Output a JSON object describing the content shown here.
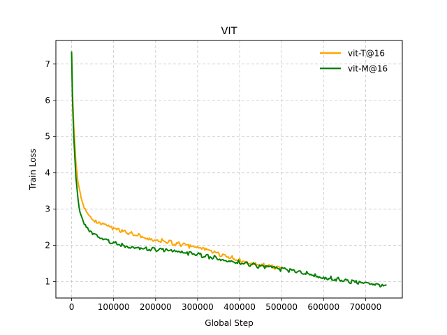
{
  "chart_data": {
    "type": "line",
    "title": "VIT",
    "xlabel": "Global Step",
    "ylabel": "Train Loss",
    "xlim": [
      -37500,
      787500
    ],
    "ylim": [
      0.55,
      7.65
    ],
    "xticks": [
      0,
      100000,
      200000,
      300000,
      400000,
      500000,
      600000,
      700000
    ],
    "xtick_labels": [
      "0",
      "100000",
      "200000",
      "300000",
      "400000",
      "500000",
      "600000",
      "700000"
    ],
    "yticks": [
      1,
      2,
      3,
      4,
      5,
      6,
      7
    ],
    "ytick_labels": [
      "1",
      "2",
      "3",
      "4",
      "5",
      "6",
      "7"
    ],
    "grid": true,
    "legend_position": "top-right",
    "series": [
      {
        "name": "vit-T@16",
        "color": "#ffa500",
        "x": [
          0,
          2000,
          5000,
          10000,
          15000,
          20000,
          25000,
          30000,
          40000,
          50000,
          60000,
          70000,
          80000,
          100000,
          120000,
          140000,
          160000,
          180000,
          200000,
          220000,
          240000,
          260000,
          280000,
          300000,
          320000,
          340000,
          360000,
          380000,
          400000,
          420000,
          440000,
          460000,
          480000,
          500000
        ],
        "y": [
          7.35,
          6.3,
          5.3,
          4.3,
          3.75,
          3.45,
          3.25,
          3.1,
          2.9,
          2.78,
          2.68,
          2.62,
          2.57,
          2.48,
          2.42,
          2.36,
          2.3,
          2.25,
          2.19,
          2.15,
          2.1,
          2.06,
          2.0,
          1.95,
          1.9,
          1.84,
          1.76,
          1.7,
          1.64,
          1.58,
          1.52,
          1.48,
          1.44,
          1.4
        ]
      },
      {
        "name": "vit-M@16",
        "color": "#008000",
        "x": [
          0,
          2000,
          5000,
          10000,
          15000,
          20000,
          25000,
          30000,
          40000,
          50000,
          60000,
          70000,
          80000,
          100000,
          120000,
          140000,
          160000,
          180000,
          200000,
          220000,
          240000,
          260000,
          280000,
          300000,
          320000,
          340000,
          360000,
          380000,
          400000,
          420000,
          440000,
          460000,
          480000,
          500000,
          520000,
          540000,
          560000,
          580000,
          600000,
          620000,
          640000,
          660000,
          680000,
          700000,
          720000,
          740000,
          750000
        ],
        "y": [
          7.35,
          6.1,
          5.0,
          3.9,
          3.3,
          3.0,
          2.8,
          2.65,
          2.48,
          2.35,
          2.27,
          2.2,
          2.16,
          2.1,
          2.05,
          2.01,
          1.98,
          1.95,
          1.92,
          1.9,
          1.86,
          1.83,
          1.8,
          1.77,
          1.73,
          1.7,
          1.66,
          1.62,
          1.57,
          1.52,
          1.47,
          1.43,
          1.4,
          1.37,
          1.34,
          1.3,
          1.26,
          1.21,
          1.16,
          1.12,
          1.08,
          1.04,
          1.0,
          0.96,
          0.93,
          0.91,
          0.9
        ]
      }
    ]
  }
}
